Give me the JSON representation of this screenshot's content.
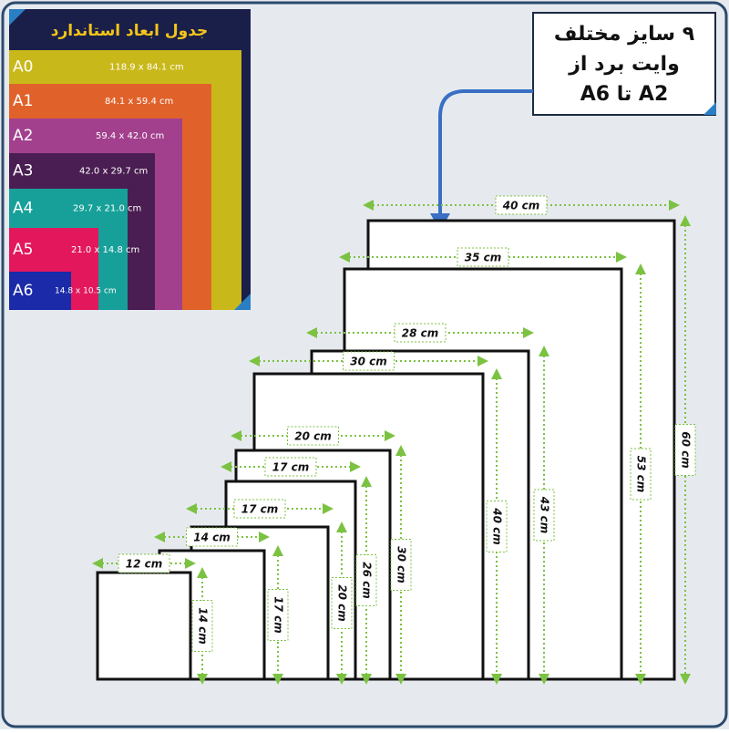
{
  "table": {
    "title": "جدول ابعاد استاندارد",
    "rows": [
      {
        "label": "A0",
        "size": "118.9 x 84.1  cm"
      },
      {
        "label": "A1",
        "size": "84.1 x 59.4    cm"
      },
      {
        "label": "A2",
        "size": "59.4 x 42.0    cm"
      },
      {
        "label": "A3",
        "size": "42.0 x 29.7   cm"
      },
      {
        "label": "A4",
        "size": "29.7 x 21.0   cm"
      },
      {
        "label": "A5",
        "size": "21.0 x 14.8  cm"
      },
      {
        "label": "A6",
        "size": "14.8 x 10.5  cm"
      }
    ]
  },
  "callout": {
    "lines": [
      "۹ سایز مختلف",
      "وایت برد از",
      "A2 تا  A6"
    ]
  },
  "boards": [
    {
      "width": "40 cm",
      "height": "60 cm"
    },
    {
      "width": "35 cm",
      "height": "53 cm"
    },
    {
      "width": "28 cm",
      "height": "43 cm"
    },
    {
      "width": "30 cm",
      "height": "40 cm"
    },
    {
      "width": "20 cm",
      "height": "30 cm"
    },
    {
      "width": "17 cm",
      "height": "26 cm"
    },
    {
      "width": "17 cm",
      "height": "20 cm"
    },
    {
      "width": "14 cm",
      "height": "17 cm"
    },
    {
      "width": "12 cm",
      "height": "14 cm"
    }
  ]
}
